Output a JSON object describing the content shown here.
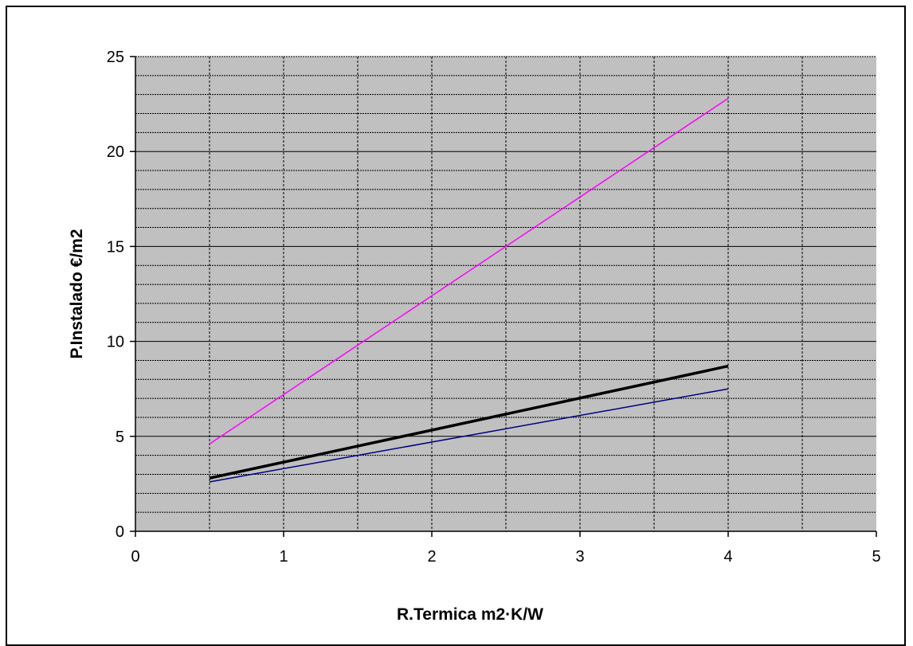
{
  "chart_data": {
    "type": "line",
    "title": "",
    "xlabel": "R.Termica m2·K/W",
    "ylabel": "P.Instalado €/m2",
    "xlim": [
      0,
      5
    ],
    "ylim": [
      0,
      25
    ],
    "x_ticks": [
      0,
      1,
      2,
      3,
      4,
      5
    ],
    "y_ticks": [
      0,
      5,
      10,
      15,
      20,
      25
    ],
    "x_ticks_labels": [
      "0",
      "1",
      "2",
      "3",
      "4",
      "5"
    ],
    "y_ticks_labels": [
      "0",
      "5",
      "10",
      "15",
      "20",
      "25"
    ],
    "grid": true,
    "legend": "none",
    "plot_background": "#c0c0c0",
    "series": [
      {
        "x": [
          0.5,
          4
        ],
        "y": [
          4.6,
          22.8
        ],
        "color": "#ff00ff",
        "width": 1.5
      },
      {
        "x": [
          0.5,
          4
        ],
        "y": [
          2.8,
          8.7
        ],
        "color": "#000000",
        "width": 3.5
      },
      {
        "x": [
          0.5,
          4
        ],
        "y": [
          2.6,
          7.5
        ],
        "color": "#000080",
        "width": 1.5
      }
    ]
  }
}
